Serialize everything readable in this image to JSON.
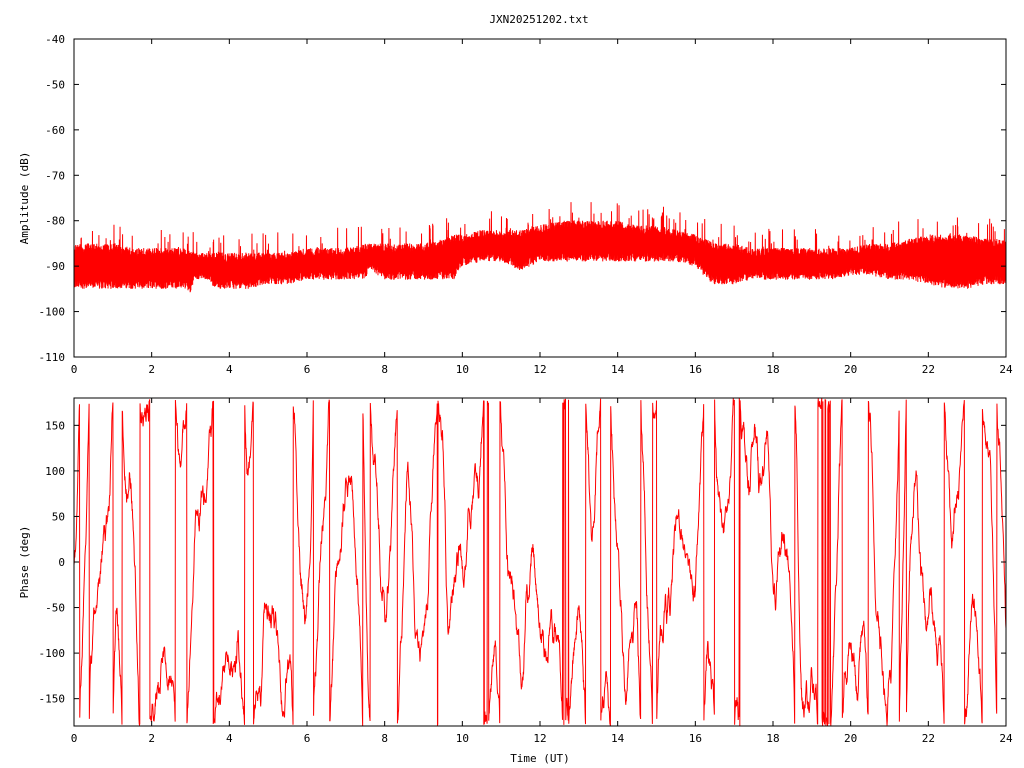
{
  "title": "JXN20251202.txt",
  "colors": {
    "series": "#ff0000",
    "axis": "#000000",
    "background": "#ffffff"
  },
  "chart_data": [
    {
      "type": "line",
      "series": [
        {
          "values_description_only": true
        }
      ],
      "ylabel": "Amplitude (dB)",
      "xlabel": "",
      "xlim": [
        0,
        24
      ],
      "ylim": [
        -110,
        -40
      ],
      "xticks": [
        "0",
        "2",
        "4",
        "6",
        "8",
        "10",
        "12",
        "14",
        "16",
        "18",
        "20",
        "22",
        "24"
      ],
      "yticks": [
        "-110",
        "-100",
        "-90",
        "-80",
        "-70",
        "-60",
        "-50",
        "-40"
      ],
      "envelope": {
        "x": [
          0,
          0.5,
          1,
          1.5,
          2,
          2.5,
          2.9,
          3.0,
          3.1,
          3.5,
          3.6,
          3.8,
          4,
          4.5,
          5,
          5.5,
          6,
          6.5,
          7,
          7.5,
          7.6,
          8,
          8.5,
          9,
          9.5,
          9.8,
          10,
          10.5,
          11,
          11.5,
          12,
          12.5,
          13,
          13.5,
          14,
          14.5,
          15,
          15.5,
          16,
          16.3,
          16.5,
          17,
          17.5,
          18,
          18.5,
          19,
          19.5,
          20,
          20.5,
          21,
          21.5,
          22,
          22.5,
          23,
          23.5,
          24
        ],
        "upper": [
          -85,
          -85,
          -85,
          -86,
          -86,
          -86,
          -86,
          -86,
          -87,
          -87,
          -87,
          -87,
          -87,
          -87,
          -87,
          -87,
          -86,
          -86,
          -86,
          -85,
          -85,
          -85,
          -85,
          -85,
          -84,
          -83,
          -83,
          -82,
          -82,
          -82,
          -81,
          -80,
          -80,
          -80,
          -80,
          -81,
          -81,
          -82,
          -83,
          -84,
          -85,
          -85,
          -86,
          -86,
          -86,
          -86,
          -86,
          -86,
          -85,
          -85,
          -84,
          -83,
          -83,
          -83,
          -84,
          -84
        ],
        "lower": [
          -95,
          -95,
          -95,
          -95,
          -95,
          -95,
          -95,
          -96,
          -93,
          -93,
          -95,
          -95,
          -95,
          -95,
          -94,
          -94,
          -93,
          -93,
          -93,
          -93,
          -91,
          -93,
          -93,
          -93,
          -93,
          -93,
          -90,
          -89,
          -89,
          -91,
          -89,
          -89,
          -89,
          -89,
          -89,
          -89,
          -89,
          -89,
          -90,
          -93,
          -94,
          -94,
          -93,
          -93,
          -93,
          -93,
          -93,
          -92,
          -92,
          -93,
          -93,
          -94,
          -95,
          -95,
          -94,
          -94
        ]
      }
    },
    {
      "type": "line",
      "ylabel": "Phase (deg)",
      "xlabel": "Time (UT)",
      "xlim": [
        0,
        24
      ],
      "ylim": [
        -180,
        180
      ],
      "xticks": [
        "0",
        "2",
        "4",
        "6",
        "8",
        "10",
        "12",
        "14",
        "16",
        "18",
        "20",
        "22",
        "24"
      ],
      "yticks": [
        "-150",
        "-100",
        "-50",
        "0",
        "50",
        "100",
        "150"
      ],
      "wrap": [
        -180,
        180
      ]
    }
  ]
}
